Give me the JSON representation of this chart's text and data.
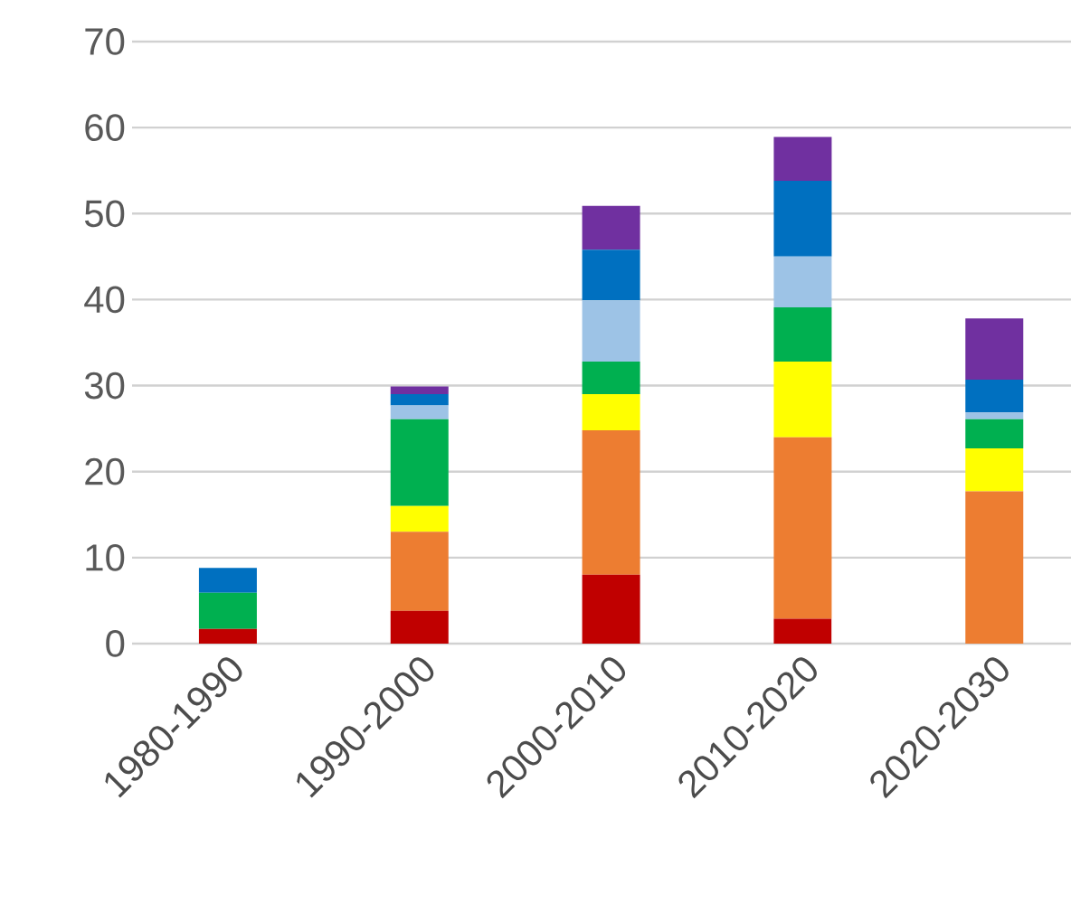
{
  "chart_data": {
    "type": "bar",
    "stacked": true,
    "categories": [
      "1980-1990",
      "1990-2000",
      "2000-2010",
      "2010-2020",
      "2020-2030"
    ],
    "series": [
      {
        "color": "#c00000",
        "values": [
          1.7,
          3.8,
          8.0,
          2.9,
          null
        ]
      },
      {
        "color": "#ed7d31",
        "values": [
          null,
          9.2,
          16.8,
          21.1,
          17.7
        ]
      },
      {
        "color": "#ffff00",
        "values": [
          null,
          3.0,
          4.2,
          8.8,
          5.0
        ]
      },
      {
        "color": "#00b050",
        "values": [
          4.2,
          10.1,
          3.8,
          6.3,
          3.4
        ]
      },
      {
        "color": "#9dc3e6",
        "values": [
          null,
          1.6,
          7.1,
          5.9,
          0.8
        ]
      },
      {
        "color": "#0070c0",
        "values": [
          2.9,
          1.3,
          5.9,
          8.8,
          3.8
        ]
      },
      {
        "color": "#7030a0",
        "values": [
          null,
          0.9,
          5.1,
          5.1,
          7.1
        ]
      }
    ],
    "ylim": [
      0,
      70
    ],
    "yticks": [
      0,
      10,
      20,
      30,
      40,
      50,
      60,
      70
    ],
    "grid": "y"
  }
}
